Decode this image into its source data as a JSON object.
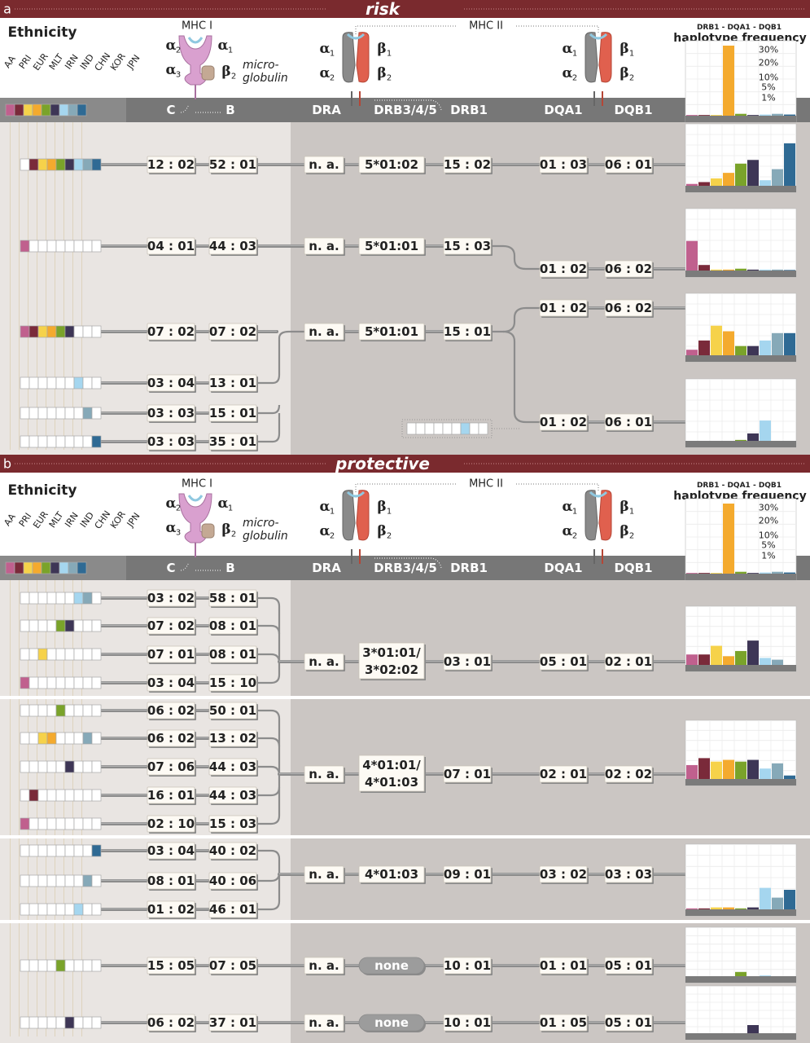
{
  "palette": {
    "AA": "#c0608e",
    "PRI": "#7a2a3a",
    "EUR": "#f6d24a",
    "MLT": "#f4aa2e",
    "IRN": "#7aa32a",
    "IND": "#3e3656",
    "CHN": "#a5d6ef",
    "KOR": "#86a9b8",
    "JPN": "#2f6a94"
  },
  "ethnicities": [
    "AA",
    "PRI",
    "EUR",
    "MLT",
    "IRN",
    "IND",
    "CHN",
    "KOR",
    "JPN"
  ],
  "header": {
    "ethnicity_label": "Ethnicity",
    "mhc1_label": "MHC I",
    "mhc2_label": "MHC II",
    "alpha2": "α",
    "alpha1": "α",
    "alpha3": "α",
    "beta2": "β",
    "beta1": "β",
    "alpha_sub1": "1",
    "alpha_sub2": "2",
    "alpha_sub3": "3",
    "beta_sub1": "1",
    "beta_sub2": "2",
    "micro_1": "micro-",
    "micro_2": "globulin",
    "freq_title_small": "DRB1 - DQA1 - DQB1",
    "freq_title": "haplotype frequency",
    "freq_ticks": [
      "30%",
      "20%",
      "10%",
      "5%",
      "1%"
    ],
    "loci": [
      "C",
      "B",
      "DRA",
      "DRB3/4/5",
      "DRB1",
      "DQA1",
      "DQB1"
    ]
  },
  "sections": {
    "a_letter": "a",
    "a_title": "risk",
    "b_letter": "b",
    "b_title": "protective"
  },
  "risk": {
    "rows": [
      {
        "C": "12 : 02",
        "B": "52 : 01",
        "eth": [
          0,
          1,
          1,
          1,
          1,
          1,
          1,
          1,
          1
        ]
      },
      {
        "C": "04 : 01",
        "B": "44 : 03",
        "eth": [
          1,
          0,
          0,
          0,
          0,
          0,
          0,
          0,
          0
        ]
      },
      {
        "C": "07 : 02",
        "B": "07 : 02",
        "eth": [
          1,
          1,
          1,
          1,
          1,
          1,
          0,
          0,
          0
        ]
      },
      {
        "C": "03 : 04",
        "B": "13 : 01",
        "eth": [
          0,
          0,
          0,
          0,
          0,
          0,
          1,
          0,
          0
        ]
      },
      {
        "C": "03 : 03",
        "B": "15 : 01",
        "eth": [
          0,
          0,
          0,
          0,
          0,
          0,
          0,
          1,
          0
        ]
      },
      {
        "C": "03 : 03",
        "B": "35 : 01",
        "eth": [
          0,
          0,
          0,
          0,
          0,
          0,
          0,
          0,
          1
        ]
      }
    ],
    "class2": [
      {
        "DRA": "n. a.",
        "DRB345": "5*01:02",
        "DRB1": "15 : 02"
      },
      {
        "DRA": "n. a.",
        "DRB345": "5*01:01",
        "DRB1": "15 : 03"
      },
      {
        "DRA": "n. a.",
        "DRB345": "5*01:01",
        "DRB1": "15 : 01"
      }
    ],
    "dq": [
      {
        "DQA1": "01 : 03",
        "DQB1": "06 : 01"
      },
      {
        "DQA1": "01 : 02",
        "DQB1": "06 : 02"
      },
      {
        "DQA1": "01 : 02",
        "DQB1": "06 : 02"
      },
      {
        "DQA1": "01 : 02",
        "DQB1": "06 : 01"
      }
    ]
  },
  "protective": {
    "rows": [
      {
        "C": "03 : 02",
        "B": "58 : 01",
        "eth": [
          0,
          0,
          0,
          0,
          0,
          0,
          1,
          1,
          0
        ]
      },
      {
        "C": "07 : 02",
        "B": "08 : 01",
        "eth": [
          0,
          0,
          0,
          0,
          1,
          1,
          0,
          0,
          0
        ]
      },
      {
        "C": "07 : 01",
        "B": "08 : 01",
        "eth": [
          0,
          0,
          1,
          0,
          0,
          0,
          0,
          0,
          0
        ]
      },
      {
        "C": "03 : 04",
        "B": "15 : 10",
        "eth": [
          1,
          0,
          0,
          0,
          0,
          0,
          0,
          0,
          0
        ]
      },
      {
        "C": "06 : 02",
        "B": "50 : 01",
        "eth": [
          0,
          0,
          0,
          0,
          1,
          0,
          0,
          0,
          0
        ]
      },
      {
        "C": "06 : 02",
        "B": "13 : 02",
        "eth": [
          0,
          0,
          1,
          1,
          0,
          0,
          0,
          1,
          0
        ]
      },
      {
        "C": "07 : 06",
        "B": "44 : 03",
        "eth": [
          0,
          0,
          0,
          0,
          0,
          1,
          0,
          0,
          0
        ]
      },
      {
        "C": "16 : 01",
        "B": "44 : 03",
        "eth": [
          0,
          1,
          0,
          0,
          0,
          0,
          0,
          0,
          0
        ]
      },
      {
        "C": "02 : 10",
        "B": "15 : 03",
        "eth": [
          1,
          0,
          0,
          0,
          0,
          0,
          0,
          0,
          0
        ]
      },
      {
        "C": "03 : 04",
        "B": "40 : 02",
        "eth": [
          0,
          0,
          0,
          0,
          0,
          0,
          0,
          0,
          1
        ]
      },
      {
        "C": "08 : 01",
        "B": "40 : 06",
        "eth": [
          0,
          0,
          0,
          0,
          0,
          0,
          0,
          1,
          0
        ]
      },
      {
        "C": "01 : 02",
        "B": "46 : 01",
        "eth": [
          0,
          0,
          0,
          0,
          0,
          0,
          1,
          0,
          0
        ]
      },
      {
        "C": "15 : 05",
        "B": "07 : 05",
        "eth": [
          0,
          0,
          0,
          0,
          1,
          0,
          0,
          0,
          0
        ]
      },
      {
        "C": "06 : 02",
        "B": "37 : 01",
        "eth": [
          0,
          0,
          0,
          0,
          0,
          1,
          0,
          0,
          0
        ]
      }
    ],
    "class2": [
      {
        "DRA": "n. a.",
        "DRB345a": "3*01:01/",
        "DRB345b": "3*02:02",
        "DRB1": "03 : 01",
        "DQA1": "05 : 01",
        "DQB1": "02 : 01"
      },
      {
        "DRA": "n. a.",
        "DRB345a": "4*01:01/",
        "DRB345b": "4*01:03",
        "DRB1": "07 : 01",
        "DQA1": "02 : 01",
        "DQB1": "02 : 02"
      },
      {
        "DRA": "n. a.",
        "DRB345": "4*01:03",
        "DRB1": "09 : 01",
        "DQA1": "03 : 02",
        "DQB1": "03 : 03"
      },
      {
        "DRA": "n. a.",
        "DRB345": "none",
        "DRB1": "10 : 01",
        "DQA1": "01 : 01",
        "DQB1": "05 : 01"
      },
      {
        "DRA": "n. a.",
        "DRB345": "none",
        "DRB1": "10 : 01",
        "DQA1": "01 : 05",
        "DQB1": "05 : 01"
      }
    ]
  },
  "chart_data": [
    {
      "type": "bar",
      "categories": [
        "AA",
        "PRI",
        "EUR",
        "MLT",
        "IRN",
        "IND",
        "CHN",
        "KOR",
        "JPN"
      ],
      "values": [
        0.3,
        0.3,
        0.3,
        30,
        0.8,
        0.3,
        0.5,
        0.8,
        0.5
      ],
      "ylim": [
        0,
        30
      ]
    },
    {
      "type": "bar",
      "categories": [
        "AA",
        "PRI",
        "EUR",
        "MLT",
        "IRN",
        "IND",
        "CHN",
        "KOR",
        "JPN"
      ],
      "values": [
        1,
        2,
        4,
        7,
        12,
        14,
        3,
        9,
        23
      ],
      "ylim": [
        0,
        30
      ]
    },
    {
      "type": "bar",
      "categories": [
        "AA",
        "PRI",
        "EUR",
        "MLT",
        "IRN",
        "IND",
        "CHN",
        "KOR",
        "JPN"
      ],
      "values": [
        16,
        3,
        0.5,
        0.5,
        1,
        0.5,
        0.5,
        0.5,
        0.3
      ],
      "ylim": [
        0,
        30
      ]
    },
    {
      "type": "bar",
      "categories": [
        "AA",
        "PRI",
        "EUR",
        "MLT",
        "IRN",
        "IND",
        "CHN",
        "KOR",
        "JPN"
      ],
      "values": [
        3,
        8,
        16,
        13,
        5,
        5,
        8,
        12,
        12
      ],
      "ylim": [
        0,
        30
      ]
    },
    {
      "type": "bar",
      "categories": [
        "AA",
        "PRI",
        "EUR",
        "MLT",
        "IRN",
        "IND",
        "CHN",
        "KOR",
        "JPN"
      ],
      "values": [
        0,
        0,
        0,
        0,
        0.5,
        4,
        11,
        0,
        0
      ],
      "ylim": [
        0,
        30
      ]
    },
    {
      "type": "bar",
      "categories": [
        "AA",
        "PRI",
        "EUR",
        "MLT",
        "IRN",
        "IND",
        "CHN",
        "KOR",
        "JPN"
      ],
      "values": [
        0.3,
        0.3,
        0.3,
        30,
        0.8,
        0.3,
        0.5,
        0.8,
        0.5
      ],
      "ylim": [
        0,
        30
      ]
    },
    {
      "type": "bar",
      "categories": [
        "AA",
        "PRI",
        "EUR",
        "MLT",
        "IRN",
        "IND",
        "CHN",
        "KOR",
        "JPN"
      ],
      "values": [
        6,
        6,
        11,
        5,
        8,
        14,
        4,
        3,
        0
      ],
      "ylim": [
        0,
        30
      ]
    },
    {
      "type": "bar",
      "categories": [
        "AA",
        "PRI",
        "EUR",
        "MLT",
        "IRN",
        "IND",
        "CHN",
        "KOR",
        "JPN"
      ],
      "values": [
        8,
        12,
        10,
        11,
        10,
        11,
        6,
        9,
        2
      ],
      "ylim": [
        0,
        30
      ]
    },
    {
      "type": "bar",
      "categories": [
        "AA",
        "PRI",
        "EUR",
        "MLT",
        "IRN",
        "IND",
        "CHN",
        "KOR",
        "JPN"
      ],
      "values": [
        0.5,
        0.5,
        1,
        1,
        0.5,
        1,
        11,
        6,
        10
      ],
      "ylim": [
        0,
        30
      ]
    },
    {
      "type": "bar",
      "categories": [
        "AA",
        "PRI",
        "EUR",
        "MLT",
        "IRN",
        "IND",
        "CHN",
        "KOR",
        "JPN"
      ],
      "values": [
        0,
        0,
        0,
        0,
        3,
        0,
        0.5,
        0,
        0
      ],
      "ylim": [
        0,
        30
      ]
    },
    {
      "type": "bar",
      "categories": [
        "AA",
        "PRI",
        "EUR",
        "MLT",
        "IRN",
        "IND",
        "CHN",
        "KOR",
        "JPN"
      ],
      "values": [
        0,
        0,
        0,
        0,
        0,
        6,
        0,
        0,
        0
      ],
      "ylim": [
        0,
        30
      ]
    }
  ]
}
